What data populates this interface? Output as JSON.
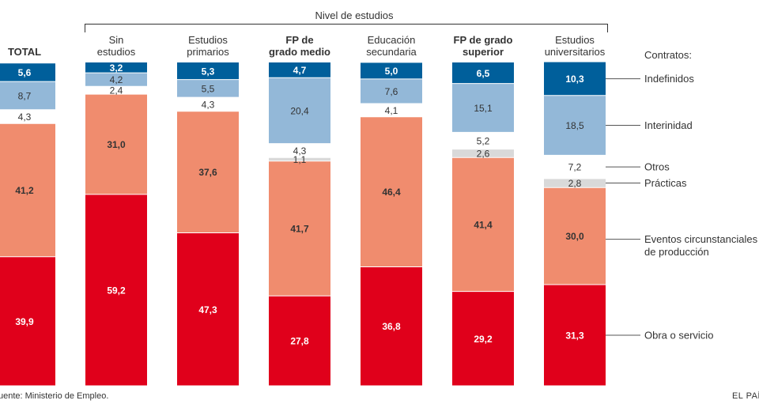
{
  "chart_data": {
    "type": "bar",
    "stacked": true,
    "percent": true,
    "group_label": "Nivel de estudios",
    "categories": [
      "TOTAL",
      "Sin estudios",
      "Estudios primarios",
      "FP de grado medio",
      "Educación secundaria",
      "FP de grado superior",
      "Estudios universitarios"
    ],
    "category_lines": [
      [
        "TOTAL"
      ],
      [
        "Sin",
        "estudios"
      ],
      [
        "Estudios",
        "primarios"
      ],
      [
        "FP de",
        "grado medio"
      ],
      [
        "Educación",
        "secundaria"
      ],
      [
        "FP de grado",
        "superior"
      ],
      [
        "Estudios",
        "universitarios"
      ]
    ],
    "category_bold": [
      true,
      false,
      false,
      true,
      false,
      true,
      false
    ],
    "legend_title": "Contratos:",
    "series": [
      {
        "name": "Obra o servicio",
        "name_lines": [
          "Obra o servicio"
        ],
        "color": "#e0001b",
        "label_color": "#ffffff",
        "label_bold": true,
        "label_inside": true,
        "values": [
          39.9,
          59.2,
          47.3,
          27.8,
          36.8,
          29.2,
          31.3
        ]
      },
      {
        "name": "Eventos circunstanciales de producción",
        "name_lines": [
          "Eventos circunstanciales",
          "de producción"
        ],
        "color": "#f08c6e",
        "label_color": "#333333",
        "label_bold": true,
        "label_inside": true,
        "values": [
          41.2,
          31.0,
          37.6,
          41.7,
          46.4,
          41.4,
          30.0
        ]
      },
      {
        "name": "Prácticas",
        "name_lines": [
          "Prácticas"
        ],
        "color": "#d9d9d9",
        "label_color": "#333333",
        "label_bold": false,
        "label_inside": false,
        "values": [
          null,
          null,
          null,
          1.1,
          null,
          2.6,
          2.8
        ]
      },
      {
        "name": "Otros",
        "name_lines": [
          "Otros"
        ],
        "color": "#ffffff",
        "label_color": "#333333",
        "label_bold": false,
        "label_inside": false,
        "values": [
          4.3,
          2.4,
          4.3,
          4.3,
          4.1,
          5.2,
          7.2
        ]
      },
      {
        "name": "Interinidad",
        "name_lines": [
          "Interinidad"
        ],
        "color": "#93b8d8",
        "label_color": "#333333",
        "label_bold": false,
        "label_inside": true,
        "values": [
          8.7,
          4.2,
          5.5,
          20.4,
          7.6,
          15.1,
          18.5
        ]
      },
      {
        "name": "Indefinidos",
        "name_lines": [
          "Indefinidos"
        ],
        "color": "#005f9b",
        "label_color": "#ffffff",
        "label_bold": true,
        "label_inside": true,
        "values": [
          5.6,
          3.2,
          5.3,
          4.7,
          5.0,
          6.5,
          10.3
        ]
      }
    ],
    "ylim": [
      0,
      100
    ]
  },
  "footer": {
    "source": "uente: Ministerio de Empleo.",
    "brand": "EL PAÍ"
  }
}
